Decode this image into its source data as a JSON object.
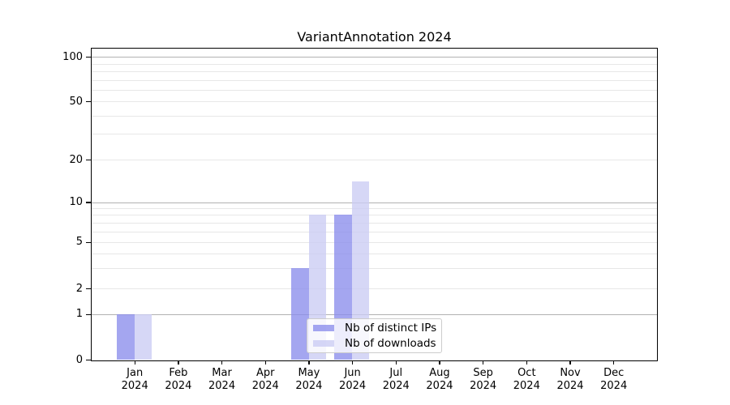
{
  "title": "VariantAnnotation 2024",
  "chart_data": {
    "type": "bar",
    "title": "VariantAnnotation 2024",
    "categories": [
      "Jan 2024",
      "Feb 2024",
      "Mar 2024",
      "Apr 2024",
      "May 2024",
      "Jun 2024",
      "Jul 2024",
      "Aug 2024",
      "Sep 2024",
      "Oct 2024",
      "Nov 2024",
      "Dec 2024"
    ],
    "x_tick_months": [
      "Jan",
      "Feb",
      "Mar",
      "Apr",
      "May",
      "Jun",
      "Jul",
      "Aug",
      "Sep",
      "Oct",
      "Nov",
      "Dec"
    ],
    "x_tick_year": "2024",
    "series": [
      {
        "name": "Nb of distinct IPs",
        "color": "rgba(139,141,236,0.78)",
        "values": [
          1,
          0,
          0,
          0,
          3,
          8,
          0,
          0,
          0,
          0,
          0,
          0
        ]
      },
      {
        "name": "Nb of downloads",
        "color": "rgba(203,204,244,0.78)",
        "values": [
          1,
          0,
          0,
          0,
          8,
          14,
          0,
          0,
          0,
          0,
          0,
          0
        ]
      }
    ],
    "y_ticks": [
      0,
      1,
      2,
      5,
      10,
      20,
      50,
      100
    ],
    "y_tick_labels": [
      "0",
      "1",
      "2",
      "5",
      "10",
      "20",
      "50",
      "100"
    ],
    "y_minor_gridlines": [
      3,
      4,
      6,
      7,
      8,
      9,
      30,
      40,
      60,
      70,
      80,
      90
    ],
    "y_major_gridlines": [
      1,
      10,
      100
    ],
    "scale": "log-like (0,1,2,5,10,20,50,100 ticks)",
    "ylim": [
      0,
      130
    ],
    "grid": true,
    "legend_position": "lower center",
    "colors": {
      "major_grid": "#b2b2b2",
      "minor_grid": "#e7e7e7",
      "axis": "#000000",
      "background": "#ffffff"
    }
  }
}
